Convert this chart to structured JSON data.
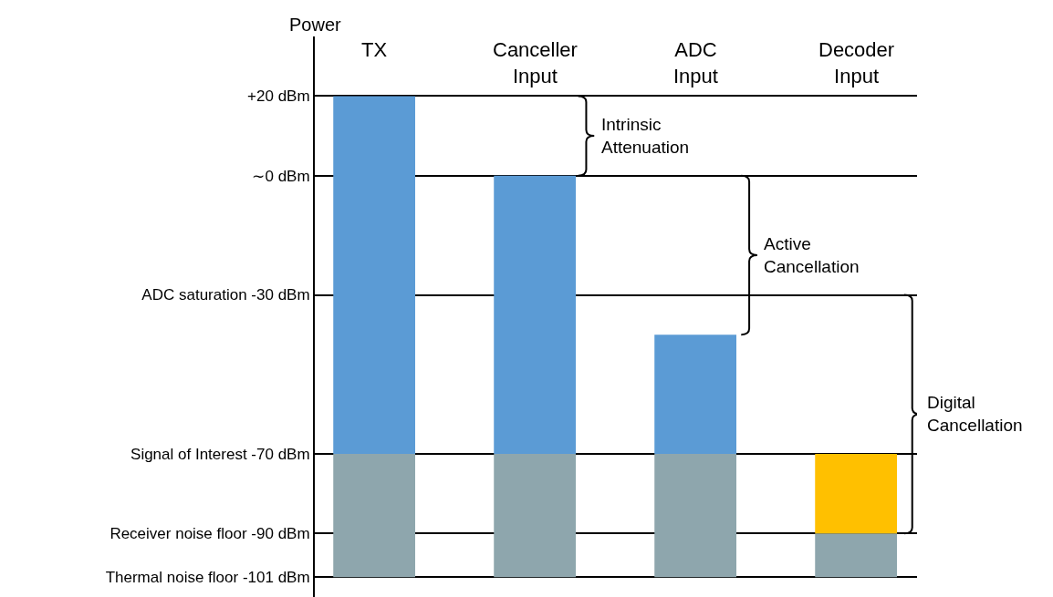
{
  "chart_data": {
    "type": "bar",
    "ylabel": "Power",
    "categories": [
      "TX",
      "Canceller\nInput",
      "ADC\nInput",
      "Decoder\nInput"
    ],
    "series": [
      {
        "color": "#8ea6ad",
        "base": [
          -101,
          -101,
          -101,
          -101
        ],
        "values": [
          31,
          31,
          31,
          11
        ]
      },
      {
        "color": "#5b9bd5",
        "base": [
          -70,
          -70,
          -70,
          null
        ],
        "values": [
          90,
          70,
          30,
          null
        ]
      },
      {
        "color": "#ffc000",
        "base": [
          null,
          null,
          null,
          -90
        ],
        "values": [
          null,
          null,
          null,
          20
        ]
      }
    ],
    "ylim": [
      -106,
      35
    ],
    "yticks": [
      {
        "value": 20,
        "label": "+20 dBm"
      },
      {
        "value": 0,
        "label": "∼0 dBm"
      },
      {
        "value": -30,
        "label": "ADC saturation -30 dBm"
      },
      {
        "value": -70,
        "label": "Signal of Interest -70 dBm"
      },
      {
        "value": -90,
        "label": "Receiver noise floor -90 dBm"
      },
      {
        "value": -101,
        "label": "Thermal noise floor -101 dBm"
      }
    ],
    "annotations": [
      "Intrinsic\nAttenuation",
      "Active\nCancellation",
      "Digital\nCancellation"
    ],
    "grid": "y"
  }
}
